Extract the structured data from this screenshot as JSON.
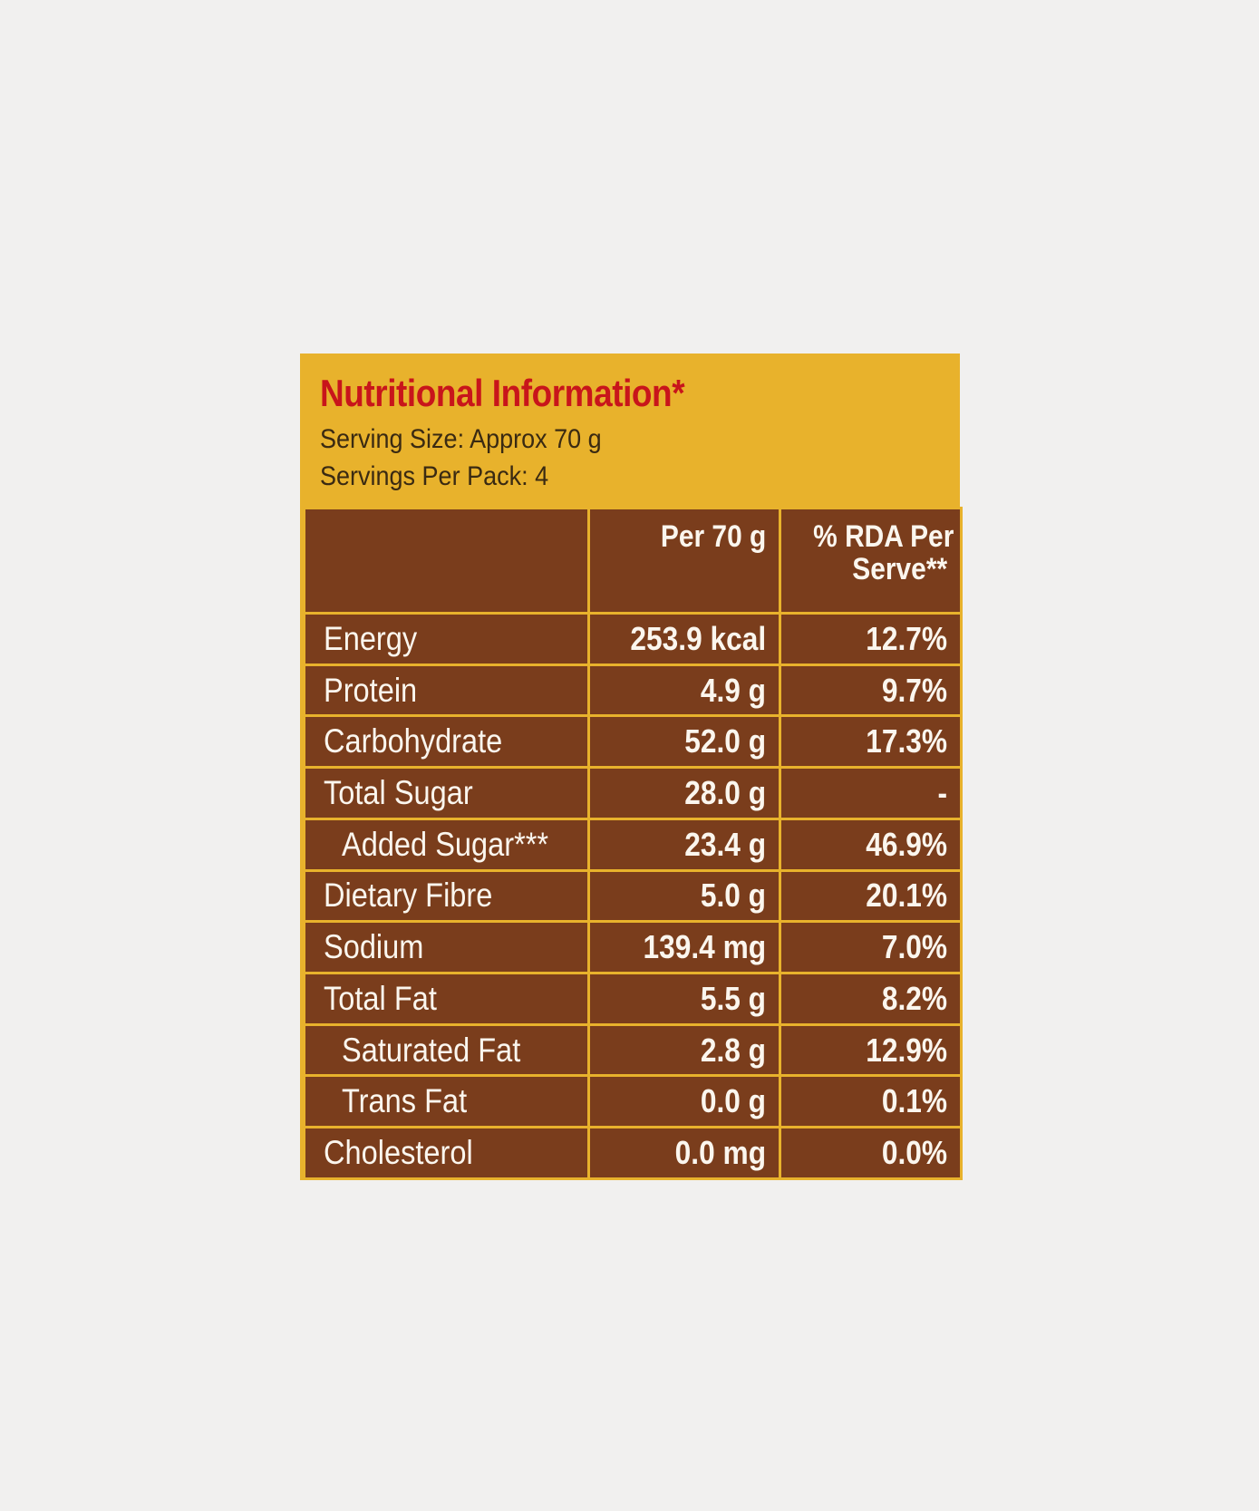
{
  "label": {
    "title": "Nutritional Information*",
    "serving_size": "Serving Size: Approx 70 g",
    "servings_per_pack": "Servings Per Pack: 4",
    "colors": {
      "panel": "#e8b22c",
      "title": "#c8151b",
      "table_background": "#7a3d1c",
      "table_text": "#fbf6ee"
    }
  },
  "table": {
    "headers": {
      "nutrient": "",
      "per_serving": "Per 70 g",
      "rda_line1": "% RDA Per",
      "rda_line2": "Serve**"
    },
    "rows": [
      {
        "name": "Energy",
        "amount": "253.9 kcal",
        "rda": "12.7%"
      },
      {
        "name": "Protein",
        "amount": "4.9 g",
        "rda": "9.7%"
      },
      {
        "name": "Carbohydrate",
        "amount": "52.0 g",
        "rda": "17.3%"
      },
      {
        "name": "Total Sugar",
        "amount": "28.0 g",
        "rda": "-"
      },
      {
        "name": "Added Sugar***",
        "amount": "23.4 g",
        "rda": "46.9%"
      },
      {
        "name": "Dietary Fibre",
        "amount": "5.0 g",
        "rda": "20.1%"
      },
      {
        "name": "Sodium",
        "amount": "139.4 mg",
        "rda": "7.0%"
      },
      {
        "name": "Total Fat",
        "amount": "5.5 g",
        "rda": "8.2%"
      },
      {
        "name": "Saturated Fat",
        "amount": "2.8 g",
        "rda": "12.9%"
      },
      {
        "name": "Trans Fat",
        "amount": "0.0 g",
        "rda": "0.1%"
      },
      {
        "name": "Cholesterol",
        "amount": "0.0 mg",
        "rda": "0.0%"
      }
    ]
  }
}
